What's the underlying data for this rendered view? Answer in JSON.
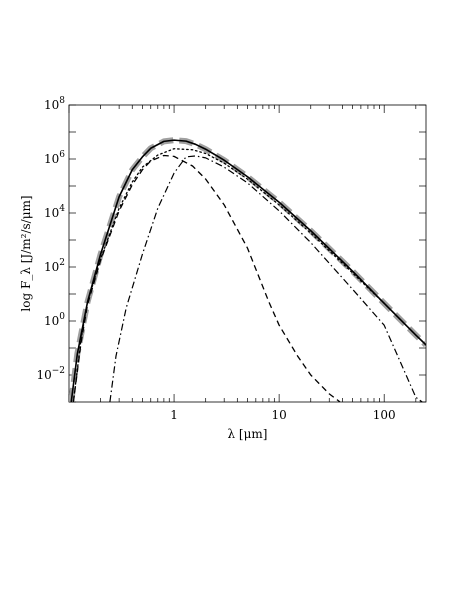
{
  "chart_data": {
    "type": "line",
    "title": "",
    "xlabel": "λ [μm]",
    "ylabel": "log F_λ [J/m²/s/μm]",
    "x_scale": "log",
    "y_scale": "log",
    "xlim": [
      0.1,
      250
    ],
    "ylim": [
      0.001,
      100000000
    ],
    "grid": false,
    "x_ticks": [
      {
        "value": 1,
        "label": "1"
      },
      {
        "value": 10,
        "label": "10"
      },
      {
        "value": 100,
        "label": "100"
      }
    ],
    "y_ticks": [
      {
        "value": 0.01,
        "mantissa": "10",
        "exponent": "−2"
      },
      {
        "value": 1,
        "mantissa": "10",
        "exponent": "0"
      },
      {
        "value": 100,
        "mantissa": "10",
        "exponent": "2"
      },
      {
        "value": 10000,
        "mantissa": "10",
        "exponent": "4"
      },
      {
        "value": 1000000,
        "mantissa": "10",
        "exponent": "6"
      },
      {
        "value": 100000000,
        "mantissa": "10",
        "exponent": "8"
      }
    ],
    "series": [
      {
        "style": "thick-gray-long-dash",
        "color": "#a0a0a0",
        "x": [
          0.105,
          0.12,
          0.15,
          0.2,
          0.3,
          0.4,
          0.5,
          0.6,
          0.8,
          1.0,
          1.3,
          1.6,
          2,
          3,
          5,
          10,
          20,
          50,
          100,
          200,
          250
        ],
        "y": [
          0.001,
          0.06,
          5,
          300,
          40000,
          400000,
          1200000,
          2500000,
          4500000,
          5000000,
          4600000,
          3500000,
          2300000,
          900000,
          220000,
          25000,
          2200,
          70,
          4.5,
          0.3,
          0.13
        ]
      },
      {
        "style": "solid",
        "color": "#000000",
        "x": [
          0.105,
          0.12,
          0.15,
          0.2,
          0.3,
          0.4,
          0.5,
          0.6,
          0.8,
          1.0,
          1.3,
          1.6,
          2,
          3,
          5,
          10,
          20,
          50,
          100,
          200,
          250
        ],
        "y": [
          0.001,
          0.06,
          5,
          300,
          40000,
          400000,
          1200000,
          2500000,
          4500000,
          5000000,
          4600000,
          3500000,
          2300000,
          900000,
          220000,
          25000,
          2200,
          70,
          4.5,
          0.3,
          0.13
        ]
      },
      {
        "style": "dotted",
        "color": "#000000",
        "x": [
          0.11,
          0.13,
          0.15,
          0.2,
          0.3,
          0.4,
          0.5,
          0.7,
          1.0,
          1.5,
          2,
          3,
          5,
          10,
          20,
          50,
          100,
          200,
          250
        ],
        "y": [
          0.001,
          0.2,
          5,
          200,
          15000,
          140000,
          500000,
          1400000,
          2400000,
          2200000,
          1600000,
          700000,
          180000,
          20000,
          1800,
          60,
          4.5,
          0.3,
          0.13
        ]
      },
      {
        "style": "dashed",
        "color": "#000000",
        "x": [
          0.11,
          0.13,
          0.15,
          0.2,
          0.3,
          0.4,
          0.5,
          0.6,
          0.8,
          1.0,
          1.5,
          2,
          3,
          5,
          8,
          10,
          15,
          20,
          30,
          38
        ],
        "y": [
          0.001,
          0.15,
          4,
          180,
          12000,
          110000,
          400000,
          850000,
          1350000,
          1250000,
          550000,
          180000,
          20000,
          500,
          5,
          0.7,
          0.05,
          0.01,
          0.002,
          0.001
        ]
      },
      {
        "style": "dash-dot",
        "color": "#000000",
        "x": [
          0.245,
          0.28,
          0.35,
          0.5,
          0.7,
          1.0,
          1.3,
          1.6,
          2,
          3,
          5,
          10,
          20,
          50,
          100,
          200,
          230
        ],
        "y": [
          0.001,
          0.05,
          3,
          300,
          15000,
          300000,
          1200000,
          1300000,
          1100000,
          500000,
          130000,
          12000,
          800,
          15,
          0.7,
          0.0015,
          0.001
        ]
      }
    ]
  }
}
